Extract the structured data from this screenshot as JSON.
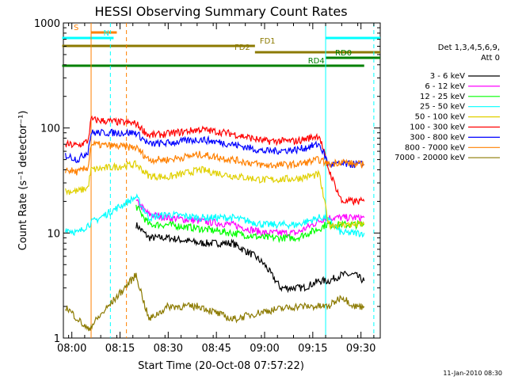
{
  "chart_data": {
    "type": "line",
    "title": "HESSI Observing Summary Count Rates",
    "xlabel": "Start Time (20-Oct-08 07:57:22)",
    "ylabel": "Count Rate (s⁻¹ detector⁻¹)",
    "yscale": "log",
    "ylim": [
      1,
      1000
    ],
    "xlim": [
      "07:57:22",
      "09:36:00"
    ],
    "x_tick_labels": [
      "08:00",
      "08:15",
      "08:30",
      "08:45",
      "09:00",
      "09:15",
      "09:30"
    ],
    "y_tick_labels": [
      "1",
      "10",
      "100",
      "1000"
    ],
    "legend_header": [
      "Det 1,3,4,5,6,9,",
      "Att 0"
    ],
    "legend_position": "right",
    "footer_date": "11-Jan-2010 08:30",
    "flags": [
      {
        "label": "S",
        "start": "08:06",
        "end": "08:14",
        "color": "#ff8000"
      },
      {
        "label": "N",
        "start": "07:57",
        "end": "08:13",
        "color": "#00ffff"
      },
      {
        "label": "",
        "start": "09:19",
        "end": "09:36",
        "color": "#00ffff"
      },
      {
        "label": "FD1",
        "start": "07:57",
        "end": "08:57",
        "color": "#8c7a00"
      },
      {
        "label": "FD2",
        "start": "08:57",
        "end": "09:36",
        "color": "#8c7a00"
      },
      {
        "label": "RD0",
        "start": "09:19",
        "end": "09:36",
        "color": "#008000"
      },
      {
        "label": "RD4",
        "start": "07:57",
        "end": "09:31",
        "color": "#008000"
      },
      {
        "label": "",
        "start": "09:33",
        "end": "09:35",
        "color": "#008000"
      }
    ],
    "vlines": [
      {
        "time": "08:06",
        "color": "#ff8000",
        "style": "solid"
      },
      {
        "time": "08:12",
        "color": "#00ffff",
        "style": "dashed"
      },
      {
        "time": "08:17",
        "color": "#ff8000",
        "style": "dashed"
      },
      {
        "time": "09:19",
        "color": "#00ffff",
        "style": "solid"
      },
      {
        "time": "09:34",
        "color": "#00ffff",
        "style": "dashed"
      }
    ],
    "series": [
      {
        "name": "3 - 6 keV",
        "color": "#000000",
        "points": [
          [
            "08:20",
            12
          ],
          [
            "08:24",
            9
          ],
          [
            "08:30",
            9
          ],
          [
            "08:40",
            8
          ],
          [
            "08:50",
            8
          ],
          [
            "08:57",
            6
          ],
          [
            "09:00",
            5
          ],
          [
            "09:05",
            3
          ],
          [
            "09:12",
            3
          ],
          [
            "09:17",
            3.5
          ],
          [
            "09:20",
            3.5
          ],
          [
            "09:24",
            4
          ],
          [
            "09:28",
            4
          ],
          [
            "09:31",
            3.5
          ]
        ]
      },
      {
        "name": "6 - 12 keV",
        "color": "#ff00ff",
        "points": [
          [
            "08:20",
            20
          ],
          [
            "08:24",
            15
          ],
          [
            "08:30",
            14
          ],
          [
            "08:40",
            13
          ],
          [
            "08:50",
            12
          ],
          [
            "09:00",
            10
          ],
          [
            "09:10",
            10
          ],
          [
            "09:17",
            13
          ],
          [
            "09:19",
            14
          ],
          [
            "09:24",
            14
          ],
          [
            "09:28",
            14
          ],
          [
            "09:31",
            14
          ]
        ]
      },
      {
        "name": "12 - 25 keV",
        "color": "#00ff00",
        "points": [
          [
            "08:20",
            18
          ],
          [
            "08:24",
            12
          ],
          [
            "08:30",
            12
          ],
          [
            "08:40",
            11
          ],
          [
            "08:50",
            10
          ],
          [
            "09:00",
            9
          ],
          [
            "09:10",
            9
          ],
          [
            "09:17",
            11
          ],
          [
            "09:19",
            12
          ],
          [
            "09:24",
            12
          ],
          [
            "09:28",
            12
          ],
          [
            "09:31",
            12
          ]
        ]
      },
      {
        "name": "25 - 50 keV",
        "color": "#00ffff",
        "points": [
          [
            "07:58",
            11
          ],
          [
            "08:02",
            10
          ],
          [
            "08:05",
            12
          ],
          [
            "08:20",
            22
          ],
          [
            "08:24",
            14
          ],
          [
            "08:30",
            15
          ],
          [
            "08:40",
            14
          ],
          [
            "08:50",
            14
          ],
          [
            "09:00",
            12
          ],
          [
            "09:10",
            12
          ],
          [
            "09:17",
            14
          ],
          [
            "09:19",
            14
          ],
          [
            "09:24",
            10
          ],
          [
            "09:28",
            10
          ],
          [
            "09:31",
            10
          ]
        ]
      },
      {
        "name": "50 - 100 keV",
        "color": "#e0d000",
        "points": [
          [
            "07:58",
            25
          ],
          [
            "08:02",
            25
          ],
          [
            "08:05",
            27
          ],
          [
            "08:06",
            40
          ],
          [
            "08:20",
            45
          ],
          [
            "08:24",
            35
          ],
          [
            "08:30",
            34
          ],
          [
            "08:40",
            40
          ],
          [
            "08:50",
            35
          ],
          [
            "09:00",
            32
          ],
          [
            "09:10",
            33
          ],
          [
            "09:17",
            36
          ],
          [
            "09:20",
            12
          ],
          [
            "09:24",
            12
          ],
          [
            "09:28",
            12
          ],
          [
            "09:31",
            12
          ]
        ]
      },
      {
        "name": "100 - 300 keV",
        "color": "#ff0000",
        "points": [
          [
            "07:58",
            70
          ],
          [
            "08:02",
            68
          ],
          [
            "08:05",
            75
          ],
          [
            "08:06",
            120
          ],
          [
            "08:20",
            110
          ],
          [
            "08:24",
            85
          ],
          [
            "08:30",
            88
          ],
          [
            "08:40",
            97
          ],
          [
            "08:50",
            88
          ],
          [
            "09:00",
            75
          ],
          [
            "09:10",
            75
          ],
          [
            "09:17",
            85
          ],
          [
            "09:20",
            40
          ],
          [
            "09:24",
            20
          ],
          [
            "09:28",
            20
          ],
          [
            "09:31",
            20
          ]
        ]
      },
      {
        "name": "300 - 800 keV",
        "color": "#0000ff",
        "points": [
          [
            "07:58",
            55
          ],
          [
            "08:02",
            50
          ],
          [
            "08:05",
            60
          ],
          [
            "08:06",
            90
          ],
          [
            "08:20",
            90
          ],
          [
            "08:24",
            70
          ],
          [
            "08:30",
            72
          ],
          [
            "08:40",
            78
          ],
          [
            "08:50",
            70
          ],
          [
            "09:00",
            60
          ],
          [
            "09:10",
            62
          ],
          [
            "09:17",
            70
          ],
          [
            "09:20",
            45
          ],
          [
            "09:24",
            45
          ],
          [
            "09:28",
            45
          ],
          [
            "09:31",
            45
          ]
        ]
      },
      {
        "name": "800 - 7000 keV",
        "color": "#ff8000",
        "points": [
          [
            "07:58",
            40
          ],
          [
            "08:02",
            38
          ],
          [
            "08:05",
            42
          ],
          [
            "08:06",
            70
          ],
          [
            "08:20",
            65
          ],
          [
            "08:24",
            50
          ],
          [
            "08:30",
            50
          ],
          [
            "08:40",
            56
          ],
          [
            "08:50",
            50
          ],
          [
            "09:00",
            44
          ],
          [
            "09:10",
            45
          ],
          [
            "09:17",
            50
          ],
          [
            "09:20",
            45
          ],
          [
            "09:24",
            48
          ],
          [
            "09:28",
            45
          ],
          [
            "09:31",
            45
          ]
        ]
      },
      {
        "name": "7000 - 20000 keV",
        "color": "#8c7a00",
        "points": [
          [
            "07:58",
            2
          ],
          [
            "08:02",
            1.5
          ],
          [
            "08:05",
            1.2
          ],
          [
            "08:20",
            4
          ],
          [
            "08:24",
            1.5
          ],
          [
            "08:30",
            2
          ],
          [
            "08:40",
            2
          ],
          [
            "08:50",
            1.5
          ],
          [
            "09:00",
            1.8
          ],
          [
            "09:10",
            2
          ],
          [
            "09:17",
            2
          ],
          [
            "09:20",
            2
          ],
          [
            "09:24",
            2.5
          ],
          [
            "09:28",
            2
          ],
          [
            "09:31",
            2
          ]
        ]
      }
    ]
  }
}
